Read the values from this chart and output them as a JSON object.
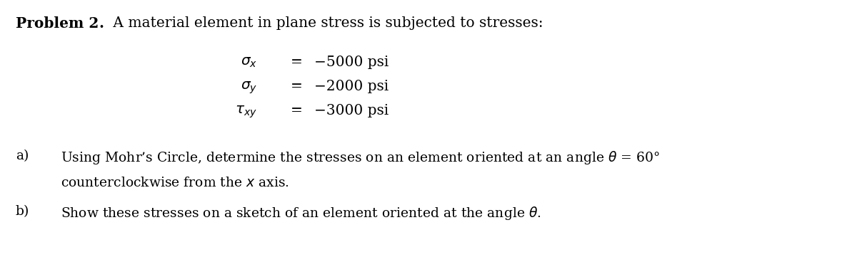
{
  "background_color": "#ffffff",
  "title_bold": "Problem 2",
  "title_period": ". ",
  "title_normal": " A material element in plane stress is subjected to stresses:",
  "math_labels": [
    "$\\sigma_x$",
    "$\\sigma_y$",
    "$\\tau_{xy}$"
  ],
  "values": [
    "−5000 psi",
    "−2000 psi",
    "−3000 psi"
  ],
  "part_a_label": "a)",
  "part_a_text1": "Using Mohr’s Circle, determine the stresses on an element oriented at an angle $\\theta$ = 60°",
  "part_a_text2": "counterclockwise from the $x$ axis.",
  "part_b_label": "b)",
  "part_b_text": "Show these stresses on a sketch of an element oriented at the angle $\\theta$.",
  "fontsize_title": 14.5,
  "fontsize_body": 13.5,
  "fontsize_stress": 14.5
}
